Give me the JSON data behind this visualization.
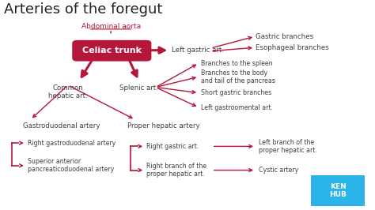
{
  "title": "Arteries of the foregut",
  "bg_color": "#ffffff",
  "red": "#b5173a",
  "text_dark": "#404040",
  "box_label": "Celiac trunk",
  "box_label2": "Abdominal aorta",
  "kenhub_color": "#2ab4e8",
  "gastric_branches_text": "Gastric branches",
  "esophageal_branches_text": "Esophageal branches",
  "splenic_branches": [
    "Branches to the spleen",
    "Branches to the body\nand tail of the pancreas",
    "Short gastric branches",
    "Left gastroomental art."
  ],
  "gastroduodenal_children": [
    "Right gastroduodenal artery",
    "Superior anterior\npancreaticoduodenal artery"
  ],
  "proper_hepatic_children": [
    "Right gastric art.",
    "Right branch of the\nproper hepatic art."
  ],
  "right_branch_children": [
    "Left branch of the\nproper hepatic art.",
    "Cystic artery"
  ]
}
